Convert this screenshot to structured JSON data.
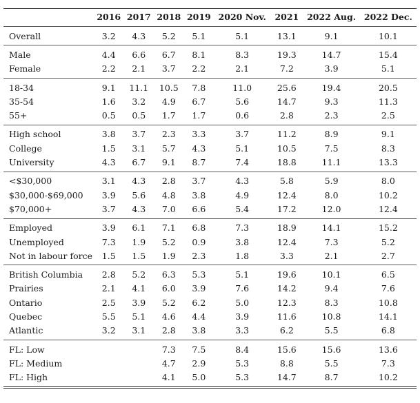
{
  "table": {
    "columns": [
      "",
      "2016",
      "2017",
      "2018",
      "2019",
      "2020 Nov.",
      "2021",
      "2022 Aug.",
      "2022 Dec."
    ],
    "groups": [
      [
        [
          "Overall",
          "3.2",
          "4.3",
          "5.2",
          "5.1",
          "5.1",
          "13.1",
          "9.1",
          "10.1"
        ]
      ],
      [
        [
          "Male",
          "4.4",
          "6.6",
          "6.7",
          "8.1",
          "8.3",
          "19.3",
          "14.7",
          "15.4"
        ],
        [
          "Female",
          "2.2",
          "2.1",
          "3.7",
          "2.2",
          "2.1",
          "7.2",
          "3.9",
          "5.1"
        ]
      ],
      [
        [
          "18-34",
          "9.1",
          "11.1",
          "10.5",
          "7.8",
          "11.0",
          "25.6",
          "19.4",
          "20.5"
        ],
        [
          "35-54",
          "1.6",
          "3.2",
          "4.9",
          "6.7",
          "5.6",
          "14.7",
          "9.3",
          "11.3"
        ],
        [
          "55+",
          "0.5",
          "0.5",
          "1.7",
          "1.7",
          "0.6",
          "2.8",
          "2.3",
          "2.5"
        ]
      ],
      [
        [
          "High school",
          "3.8",
          "3.7",
          "2.3",
          "3.3",
          "3.7",
          "11.2",
          "8.9",
          "9.1"
        ],
        [
          "College",
          "1.5",
          "3.1",
          "5.7",
          "4.3",
          "5.1",
          "10.5",
          "7.5",
          "8.3"
        ],
        [
          "University",
          "4.3",
          "6.7",
          "9.1",
          "8.7",
          "7.4",
          "18.8",
          "11.1",
          "13.3"
        ]
      ],
      [
        [
          "<$30,000",
          "3.1",
          "4.3",
          "2.8",
          "3.7",
          "4.3",
          "5.8",
          "5.9",
          "8.0"
        ],
        [
          "$30,000-$69,000",
          "3.9",
          "5.6",
          "4.8",
          "3.8",
          "4.9",
          "12.4",
          "8.0",
          "10.2"
        ],
        [
          "$70,000+",
          "3.7",
          "4.3",
          "7.0",
          "6.6",
          "5.4",
          "17.2",
          "12.0",
          "12.4"
        ]
      ],
      [
        [
          "Employed",
          "3.9",
          "6.1",
          "7.1",
          "6.8",
          "7.3",
          "18.9",
          "14.1",
          "15.2"
        ],
        [
          "Unemployed",
          "7.3",
          "1.9",
          "5.2",
          "0.9",
          "3.8",
          "12.4",
          "7.3",
          "5.2"
        ],
        [
          "Not in labour force",
          "1.5",
          "1.5",
          "1.9",
          "2.3",
          "1.8",
          "3.3",
          "2.1",
          "2.7"
        ]
      ],
      [
        [
          "British Columbia",
          "2.8",
          "5.2",
          "6.3",
          "5.3",
          "5.1",
          "19.6",
          "10.1",
          "6.5"
        ],
        [
          "Prairies",
          "2.1",
          "4.1",
          "6.0",
          "3.9",
          "7.6",
          "14.2",
          "9.4",
          "7.6"
        ],
        [
          "Ontario",
          "2.5",
          "3.9",
          "5.2",
          "6.2",
          "5.0",
          "12.3",
          "8.3",
          "10.8"
        ],
        [
          "Quebec",
          "5.5",
          "5.1",
          "4.6",
          "4.4",
          "3.9",
          "11.6",
          "10.8",
          "14.1"
        ],
        [
          "Atlantic",
          "3.2",
          "3.1",
          "2.8",
          "3.8",
          "3.3",
          "6.2",
          "5.5",
          "6.8"
        ]
      ],
      [
        [
          "FL: Low",
          "",
          "",
          "7.3",
          "7.5",
          "8.4",
          "15.6",
          "15.6",
          "13.6"
        ],
        [
          "FL: Medium",
          "",
          "",
          "4.7",
          "2.9",
          "5.3",
          "8.8",
          "5.5",
          "7.3"
        ],
        [
          "FL: High",
          "",
          "",
          "4.1",
          "5.0",
          "5.3",
          "14.7",
          "8.7",
          "10.2"
        ]
      ]
    ]
  }
}
